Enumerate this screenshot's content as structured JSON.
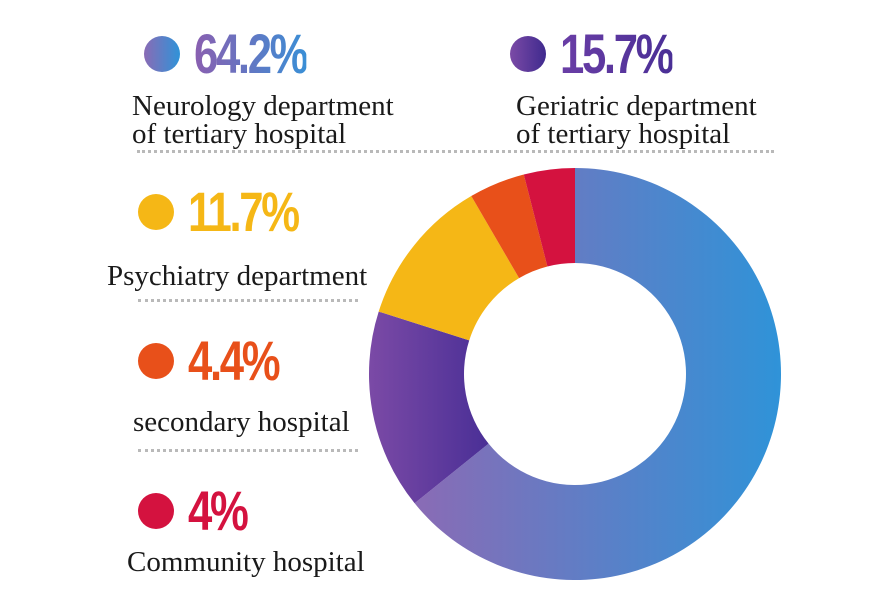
{
  "chart_data": {
    "type": "pie",
    "variant": "donut",
    "title": "",
    "start_angle": "12 o'clock",
    "direction": "clockwise",
    "slices": [
      {
        "label": "Neurology department of tertiary hospital",
        "value": 64.2,
        "display": "64.2%",
        "color_start": "#8a6bb5",
        "color_end": "#2f93d8"
      },
      {
        "label": "Geriatric department of tertiary hospital",
        "value": 15.7,
        "display": "15.7%",
        "color_start": "#7b4aa6",
        "color_end": "#4a2f96"
      },
      {
        "label": "Psychiatry department",
        "value": 11.7,
        "display": "11.7%",
        "color_start": "#f5b716",
        "color_end": "#f5b716"
      },
      {
        "label": "secondary hospital",
        "value": 4.4,
        "display": "4.4%",
        "color_start": "#e8501a",
        "color_end": "#e8501a"
      },
      {
        "label": "Community hospital",
        "value": 4.0,
        "display": "4%",
        "color_start": "#d4123f",
        "color_end": "#d4123f"
      }
    ],
    "legend_placement": "left"
  },
  "legend": [
    {
      "pct": "64.2%",
      "label_lines": [
        "Neurology department",
        "of tertiary hospital"
      ]
    },
    {
      "pct": "15.7%",
      "label_lines": [
        "Geriatric department",
        "of tertiary hospital"
      ]
    },
    {
      "pct": "11.7%",
      "label_lines": [
        "Psychiatry department"
      ]
    },
    {
      "pct": "4.4%",
      "label_lines": [
        "secondary hospital"
      ]
    },
    {
      "pct": "4%",
      "label_lines": [
        "Community hospital"
      ]
    }
  ]
}
